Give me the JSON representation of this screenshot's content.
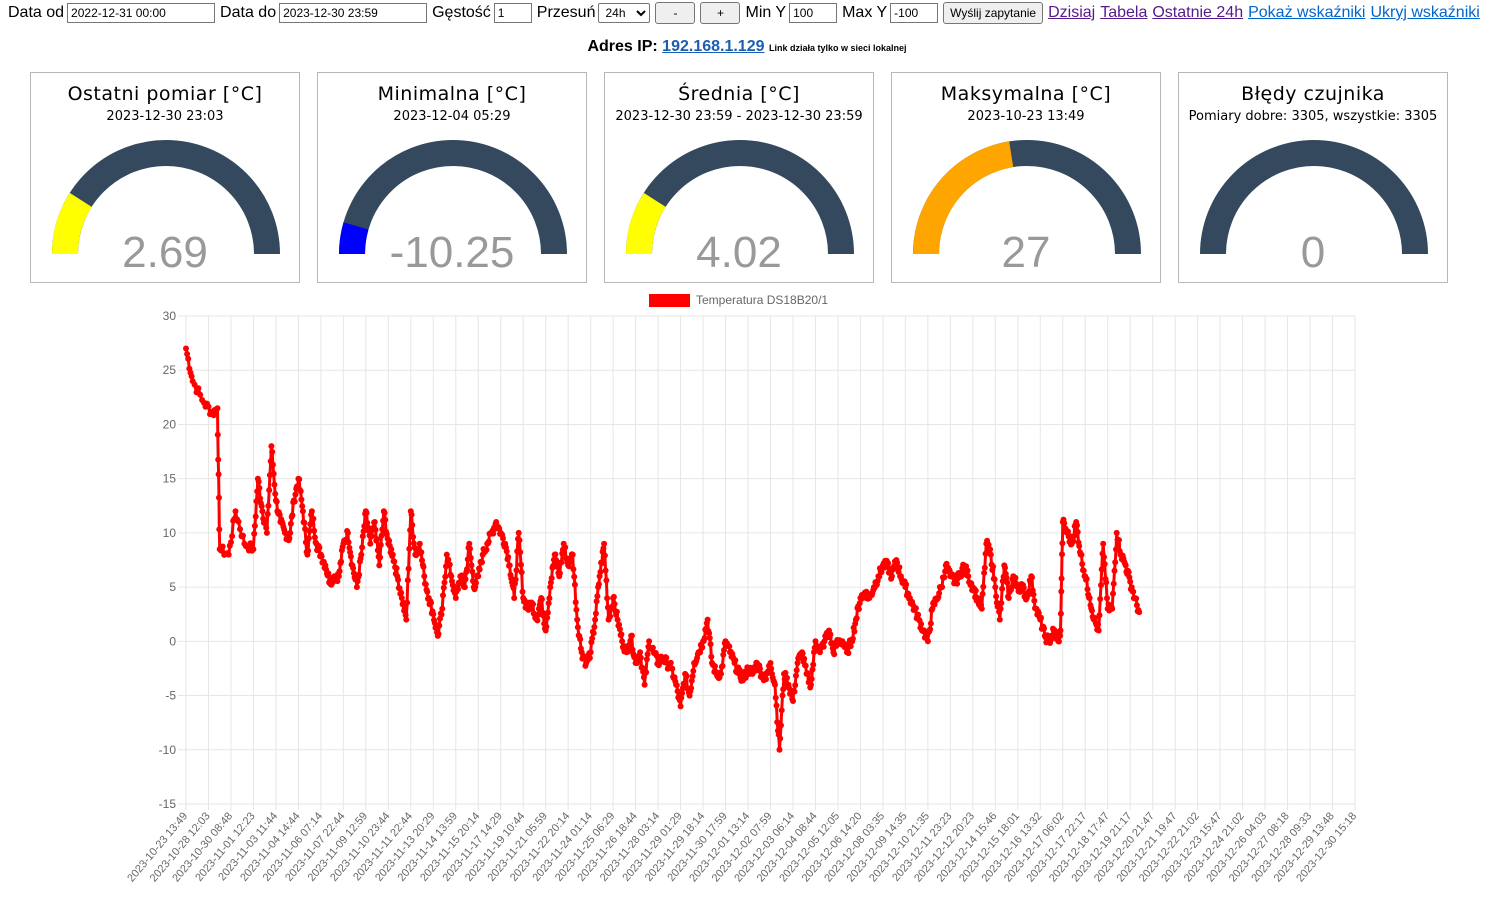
{
  "toolbar": {
    "date_from_label": "Data od",
    "date_from_value": "2022-12-31 00:00",
    "date_to_label": "Data do",
    "date_to_value": "2023-12-30 23:59",
    "density_label": "Gęstość",
    "density_value": "1",
    "shift_label": "Przesuń",
    "shift_selected": "24h",
    "minus_label": "-",
    "plus_label": "+",
    "min_y_label": "Min Y",
    "min_y_value": "100",
    "max_y_label": "Max Y",
    "max_y_value": "-100",
    "submit_label": "Wyślij zapytanie",
    "links": [
      "Dzisiaj",
      "Tabela",
      "Ostatnie 24h",
      "Pokaż wskaźniki",
      "Ukryj wskaźniki"
    ]
  },
  "ip": {
    "label": "Adres IP:",
    "address": "192.168.1.129",
    "note": "Link działa tylko w sieci lokalnej"
  },
  "gauges": [
    {
      "title": "Ostatni pomiar [°C]",
      "subtitle": "2023-12-30 23:03",
      "value": "2.69",
      "fill_fraction": 0.18,
      "color": "#ffff00"
    },
    {
      "title": "Minimalna [°C]",
      "subtitle": "2023-12-04 05:29",
      "value": "-10.25",
      "fill_fraction": 0.09,
      "color": "#0000ff"
    },
    {
      "title": "Średnia [°C]",
      "subtitle": "2023-12-30 23:59 - 2023-12-30 23:59",
      "value": "4.02",
      "fill_fraction": 0.18,
      "color": "#ffff00"
    },
    {
      "title": "Maksymalna [°C]",
      "subtitle": "2023-10-23 13:49",
      "value": "27",
      "fill_fraction": 0.45,
      "color": "#ffa500"
    },
    {
      "title": "Błędy czujnika",
      "subtitle": "Pomiary dobre: 3305, wszystkie: 3305",
      "value": "0",
      "fill_fraction": 0.0,
      "color": "#ffa500"
    }
  ],
  "gauge_track_color": "#34495e",
  "chart_data": {
    "type": "line",
    "legend": [
      "Temperatura DS18B20/1"
    ],
    "legend_position": "top",
    "series_color": "#ff0000",
    "ylim": [
      -15,
      30
    ],
    "yticks": [
      30,
      25,
      20,
      15,
      10,
      5,
      0,
      -5,
      -10,
      -15
    ],
    "grid": true,
    "x_tick_labels": [
      "2023-10-23 13:49",
      "2023-10-28 12:03",
      "2023-10-30 08:48",
      "2023-11-01 12:23",
      "2023-11-03 11:44",
      "2023-11-04 14:44",
      "2023-11-06 07:14",
      "2023-11-07 22:44",
      "2023-11-09 12:59",
      "2023-11-10 23:44",
      "2023-11-11 22:44",
      "2023-11-13 20:29",
      "2023-11-14 13:59",
      "2023-11-15 20:14",
      "2023-11-17 14:29",
      "2023-11-19 10:44",
      "2023-11-21 05:59",
      "2023-11-22 20:14",
      "2023-11-24 01:14",
      "2023-11-25 06:29",
      "2023-11-26 18:44",
      "2023-11-28 03:14",
      "2023-11-29 01:29",
      "2023-11-29 18:14",
      "2023-11-30 17:59",
      "2023-12-01 13:14",
      "2023-12-02 07:59",
      "2023-12-03 06:14",
      "2023-12-04 08:44",
      "2023-12-05 12:05",
      "2023-12-06 14:20",
      "2023-12-08 03:35",
      "2023-12-09 14:35",
      "2023-12-10 21:35",
      "2023-12-11 23:23",
      "2023-12-12 20:23",
      "2023-12-14 15:46",
      "2023-12-15 18:01",
      "2023-12-16 13:32",
      "2023-12-17 06:02",
      "2023-12-17 22:17",
      "2023-12-18 17:47",
      "2023-12-19 21:17",
      "2023-12-20 21:47",
      "2023-12-21 19:47",
      "2023-12-22 21:02",
      "2023-12-23 15:47",
      "2023-12-24 21:02",
      "2023-12-26 04:03",
      "2023-12-27 08:18",
      "2023-12-28 09:33",
      "2023-12-29 13:48",
      "2023-12-30 15:18"
    ],
    "key_points": [
      [
        0.0,
        27
      ],
      [
        0.3,
        24
      ],
      [
        0.8,
        22
      ],
      [
        1.2,
        21
      ],
      [
        1.4,
        21.5
      ],
      [
        1.5,
        8.5
      ],
      [
        1.9,
        8
      ],
      [
        2.2,
        12
      ],
      [
        2.6,
        9
      ],
      [
        3.0,
        8.5
      ],
      [
        3.2,
        15
      ],
      [
        3.4,
        12
      ],
      [
        3.6,
        10
      ],
      [
        3.8,
        18
      ],
      [
        4.0,
        13
      ],
      [
        4.2,
        11
      ],
      [
        4.4,
        10
      ],
      [
        4.6,
        9.5
      ],
      [
        4.8,
        13
      ],
      [
        5.0,
        15
      ],
      [
        5.2,
        12
      ],
      [
        5.4,
        8
      ],
      [
        5.6,
        12
      ],
      [
        5.8,
        9
      ],
      [
        6.0,
        8
      ],
      [
        6.2,
        7
      ],
      [
        6.4,
        5.5
      ],
      [
        6.6,
        6
      ],
      [
        6.8,
        6
      ],
      [
        7.0,
        9
      ],
      [
        7.2,
        10
      ],
      [
        7.4,
        7
      ],
      [
        7.6,
        5
      ],
      [
        7.8,
        8
      ],
      [
        8.0,
        12
      ],
      [
        8.2,
        9
      ],
      [
        8.4,
        11
      ],
      [
        8.6,
        7
      ],
      [
        8.8,
        12
      ],
      [
        9.0,
        9
      ],
      [
        9.2,
        8
      ],
      [
        9.4,
        6
      ],
      [
        9.6,
        4
      ],
      [
        9.8,
        2
      ],
      [
        10.0,
        12
      ],
      [
        10.2,
        8
      ],
      [
        10.4,
        9
      ],
      [
        10.6,
        6
      ],
      [
        10.8,
        4
      ],
      [
        11.0,
        2.5
      ],
      [
        11.2,
        0.5
      ],
      [
        11.4,
        3
      ],
      [
        11.6,
        8
      ],
      [
        11.8,
        6
      ],
      [
        12.0,
        4
      ],
      [
        12.2,
        6
      ],
      [
        12.4,
        5
      ],
      [
        12.6,
        9
      ],
      [
        12.8,
        5
      ],
      [
        13.0,
        6
      ],
      [
        13.2,
        8
      ],
      [
        13.4,
        9
      ],
      [
        13.6,
        10
      ],
      [
        13.8,
        11
      ],
      [
        14.0,
        10
      ],
      [
        14.2,
        9
      ],
      [
        14.4,
        7
      ],
      [
        14.6,
        4
      ],
      [
        14.8,
        10
      ],
      [
        15.0,
        4
      ],
      [
        15.2,
        3
      ],
      [
        15.4,
        3.5
      ],
      [
        15.6,
        2
      ],
      [
        15.8,
        4
      ],
      [
        16.0,
        1
      ],
      [
        16.2,
        5
      ],
      [
        16.4,
        8
      ],
      [
        16.6,
        6
      ],
      [
        16.8,
        9
      ],
      [
        17.0,
        7
      ],
      [
        17.2,
        8
      ],
      [
        17.4,
        2
      ],
      [
        17.6,
        -1
      ],
      [
        17.8,
        -2
      ],
      [
        18.0,
        -1
      ],
      [
        18.2,
        2
      ],
      [
        18.4,
        6
      ],
      [
        18.6,
        9
      ],
      [
        18.8,
        2
      ],
      [
        19.0,
        4
      ],
      [
        19.2,
        2
      ],
      [
        19.4,
        0
      ],
      [
        19.6,
        -1
      ],
      [
        19.8,
        0.5
      ],
      [
        20.0,
        -2
      ],
      [
        20.2,
        -1
      ],
      [
        20.4,
        -4
      ],
      [
        20.6,
        0
      ],
      [
        20.8,
        -1
      ],
      [
        21.0,
        -2
      ],
      [
        21.2,
        -1.5
      ],
      [
        21.4,
        -2
      ],
      [
        21.6,
        -2.5
      ],
      [
        21.8,
        -4
      ],
      [
        22.0,
        -6
      ],
      [
        22.2,
        -3
      ],
      [
        22.4,
        -5
      ],
      [
        22.6,
        -2
      ],
      [
        22.8,
        -1
      ],
      [
        23.0,
        0
      ],
      [
        23.2,
        2
      ],
      [
        23.4,
        -2
      ],
      [
        23.6,
        -3
      ],
      [
        23.8,
        -3
      ],
      [
        24.0,
        0
      ],
      [
        24.2,
        -1
      ],
      [
        24.4,
        -2
      ],
      [
        24.6,
        -3
      ],
      [
        24.8,
        -3.5
      ],
      [
        25.0,
        -2.5
      ],
      [
        25.2,
        -3
      ],
      [
        25.4,
        -2
      ],
      [
        25.6,
        -3
      ],
      [
        25.8,
        -3.5
      ],
      [
        26.0,
        -2
      ],
      [
        26.2,
        -4
      ],
      [
        26.4,
        -10
      ],
      [
        26.6,
        -3
      ],
      [
        26.8,
        -4
      ],
      [
        27.0,
        -5.5
      ],
      [
        27.2,
        -2
      ],
      [
        27.4,
        -1
      ],
      [
        27.6,
        -3
      ],
      [
        27.8,
        -4
      ],
      [
        28.0,
        0
      ],
      [
        28.2,
        -1
      ],
      [
        28.4,
        0
      ],
      [
        28.6,
        1
      ],
      [
        28.8,
        -1
      ],
      [
        29.0,
        0
      ],
      [
        29.2,
        0
      ],
      [
        29.4,
        -1
      ],
      [
        29.6,
        0
      ],
      [
        29.8,
        2
      ],
      [
        30.0,
        4
      ],
      [
        30.2,
        4.5
      ],
      [
        30.4,
        4
      ],
      [
        30.6,
        5
      ],
      [
        30.8,
        6
      ],
      [
        31.0,
        7
      ],
      [
        31.2,
        7
      ],
      [
        31.4,
        6
      ],
      [
        31.6,
        7.5
      ],
      [
        31.8,
        6
      ],
      [
        32.0,
        5
      ],
      [
        32.2,
        4
      ],
      [
        32.4,
        3
      ],
      [
        32.6,
        2
      ],
      [
        32.8,
        1
      ],
      [
        33.0,
        0
      ],
      [
        33.2,
        3
      ],
      [
        33.4,
        4
      ],
      [
        33.6,
        5
      ],
      [
        33.8,
        7
      ],
      [
        34.0,
        6
      ],
      [
        34.2,
        5.5
      ],
      [
        34.4,
        6
      ],
      [
        34.6,
        7
      ],
      [
        34.8,
        6
      ],
      [
        35.0,
        5
      ],
      [
        35.2,
        4
      ],
      [
        35.4,
        3
      ],
      [
        35.6,
        9
      ],
      [
        35.8,
        8
      ],
      [
        36.0,
        5
      ],
      [
        36.2,
        2
      ],
      [
        36.4,
        7
      ],
      [
        36.6,
        4
      ],
      [
        36.8,
        6
      ],
      [
        37.0,
        5
      ],
      [
        37.2,
        5
      ],
      [
        37.4,
        4
      ],
      [
        37.6,
        6
      ],
      [
        37.8,
        3
      ],
      [
        38.0,
        2
      ],
      [
        38.2,
        0.5
      ],
      [
        38.4,
        0
      ],
      [
        38.6,
        1
      ],
      [
        38.8,
        0
      ],
      [
        38.9,
        1
      ],
      [
        39.0,
        11
      ],
      [
        39.2,
        10
      ],
      [
        39.4,
        9
      ],
      [
        39.6,
        11
      ],
      [
        39.8,
        8
      ],
      [
        40.0,
        6
      ],
      [
        40.2,
        4
      ],
      [
        40.4,
        2
      ],
      [
        40.6,
        1
      ],
      [
        40.8,
        9
      ],
      [
        41.0,
        3
      ],
      [
        41.2,
        3
      ],
      [
        41.4,
        10
      ],
      [
        41.6,
        8
      ],
      [
        41.8,
        7
      ],
      [
        42.0,
        5.5
      ],
      [
        42.2,
        4
      ],
      [
        42.4,
        2.7
      ]
    ]
  }
}
